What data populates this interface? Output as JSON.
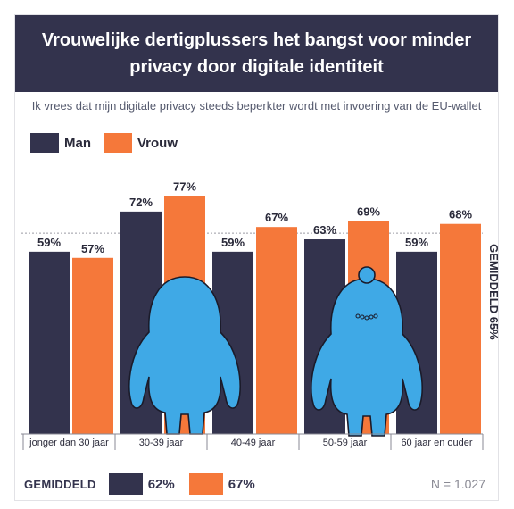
{
  "header": {
    "title_line1": "Vrouwelijke dertigplussers het bangst voor minder",
    "title_line2": "privacy door digitale identiteit"
  },
  "subtitle": "Ik vrees dat mijn digitale privacy steeds beperkter wordt met invoering van de EU-wallet",
  "colors": {
    "man": "#33334d",
    "vrouw": "#f5783a",
    "header_bg": "#33334d",
    "figure": "#3fa9e6"
  },
  "chart_data": {
    "type": "bar",
    "categories": [
      "jonger dan 30 jaar",
      "30-39 jaar",
      "40-49 jaar",
      "50-59 jaar",
      "60 jaar en ouder"
    ],
    "series": [
      {
        "name": "Man",
        "values": [
          59,
          72,
          59,
          63,
          59
        ],
        "labels": [
          "59%",
          "72%",
          "59%",
          "63%",
          "59%"
        ]
      },
      {
        "name": "Vrouw",
        "values": [
          57,
          77,
          67,
          69,
          68
        ],
        "labels": [
          "57%",
          "77%",
          "67%",
          "69%",
          "68%"
        ]
      }
    ],
    "ylim": [
      0,
      100
    ],
    "reference_line": {
      "value": 65,
      "label": "GEMIDDELD 65%"
    },
    "legend_position": "top-left",
    "grid": false
  },
  "footer": {
    "average_label": "GEMIDDELD",
    "man_avg": "62%",
    "vrouw_avg": "67%",
    "n": "N = 1.027"
  },
  "icons": [
    "person-figure-icon",
    "person-figure-bun-icon"
  ]
}
